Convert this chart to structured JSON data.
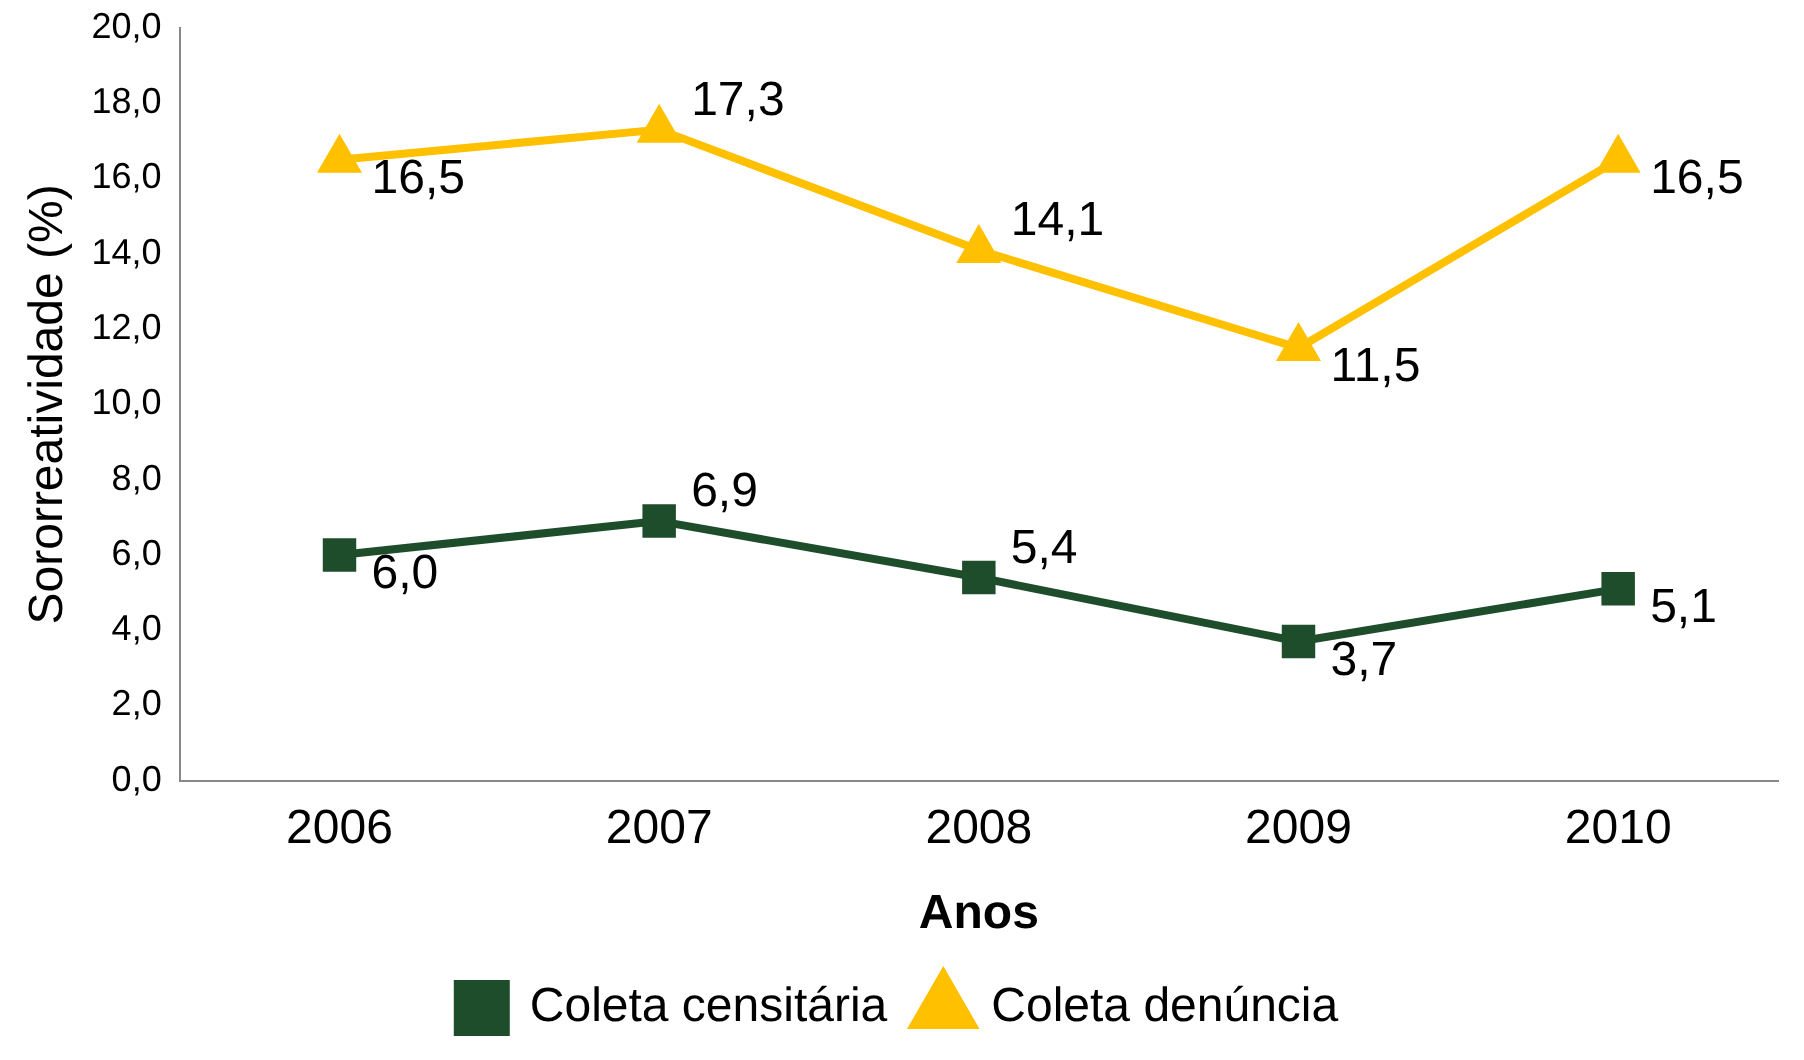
{
  "chart_data": {
    "type": "line",
    "xlabel": "Anos",
    "ylabel": "Sororreatividade (%)",
    "categories": [
      "2006",
      "2007",
      "2008",
      "2009",
      "2010"
    ],
    "series": [
      {
        "name": "Coleta censitária",
        "color": "#1e4d2b",
        "marker": "square",
        "values": [
          6.0,
          6.9,
          5.4,
          3.7,
          5.1
        ],
        "value_labels": [
          "6,0",
          "6,9",
          "5,4",
          "3,7",
          "5,1"
        ]
      },
      {
        "name": "Coleta denúncia",
        "color": "#ffc000",
        "marker": "triangle",
        "values": [
          16.5,
          17.3,
          14.1,
          11.5,
          16.5
        ],
        "value_labels": [
          "16,5",
          "17,3",
          "14,1",
          "11,5",
          "16,5"
        ]
      }
    ],
    "ylim": [
      0,
      20
    ],
    "yticks": [
      {
        "value": 0,
        "label": "0,0"
      },
      {
        "value": 2,
        "label": "2,0"
      },
      {
        "value": 4,
        "label": "4,0"
      },
      {
        "value": 6,
        "label": "6,0"
      },
      {
        "value": 8,
        "label": "8,0"
      },
      {
        "value": 10,
        "label": "10,0"
      },
      {
        "value": 12,
        "label": "12,0"
      },
      {
        "value": 14,
        "label": "14,0"
      },
      {
        "value": 16,
        "label": "16,0"
      },
      {
        "value": 18,
        "label": "18,0"
      },
      {
        "value": 20,
        "label": "20,0"
      }
    ],
    "grid": false,
    "legend": "bottom",
    "line_style": "solid"
  }
}
